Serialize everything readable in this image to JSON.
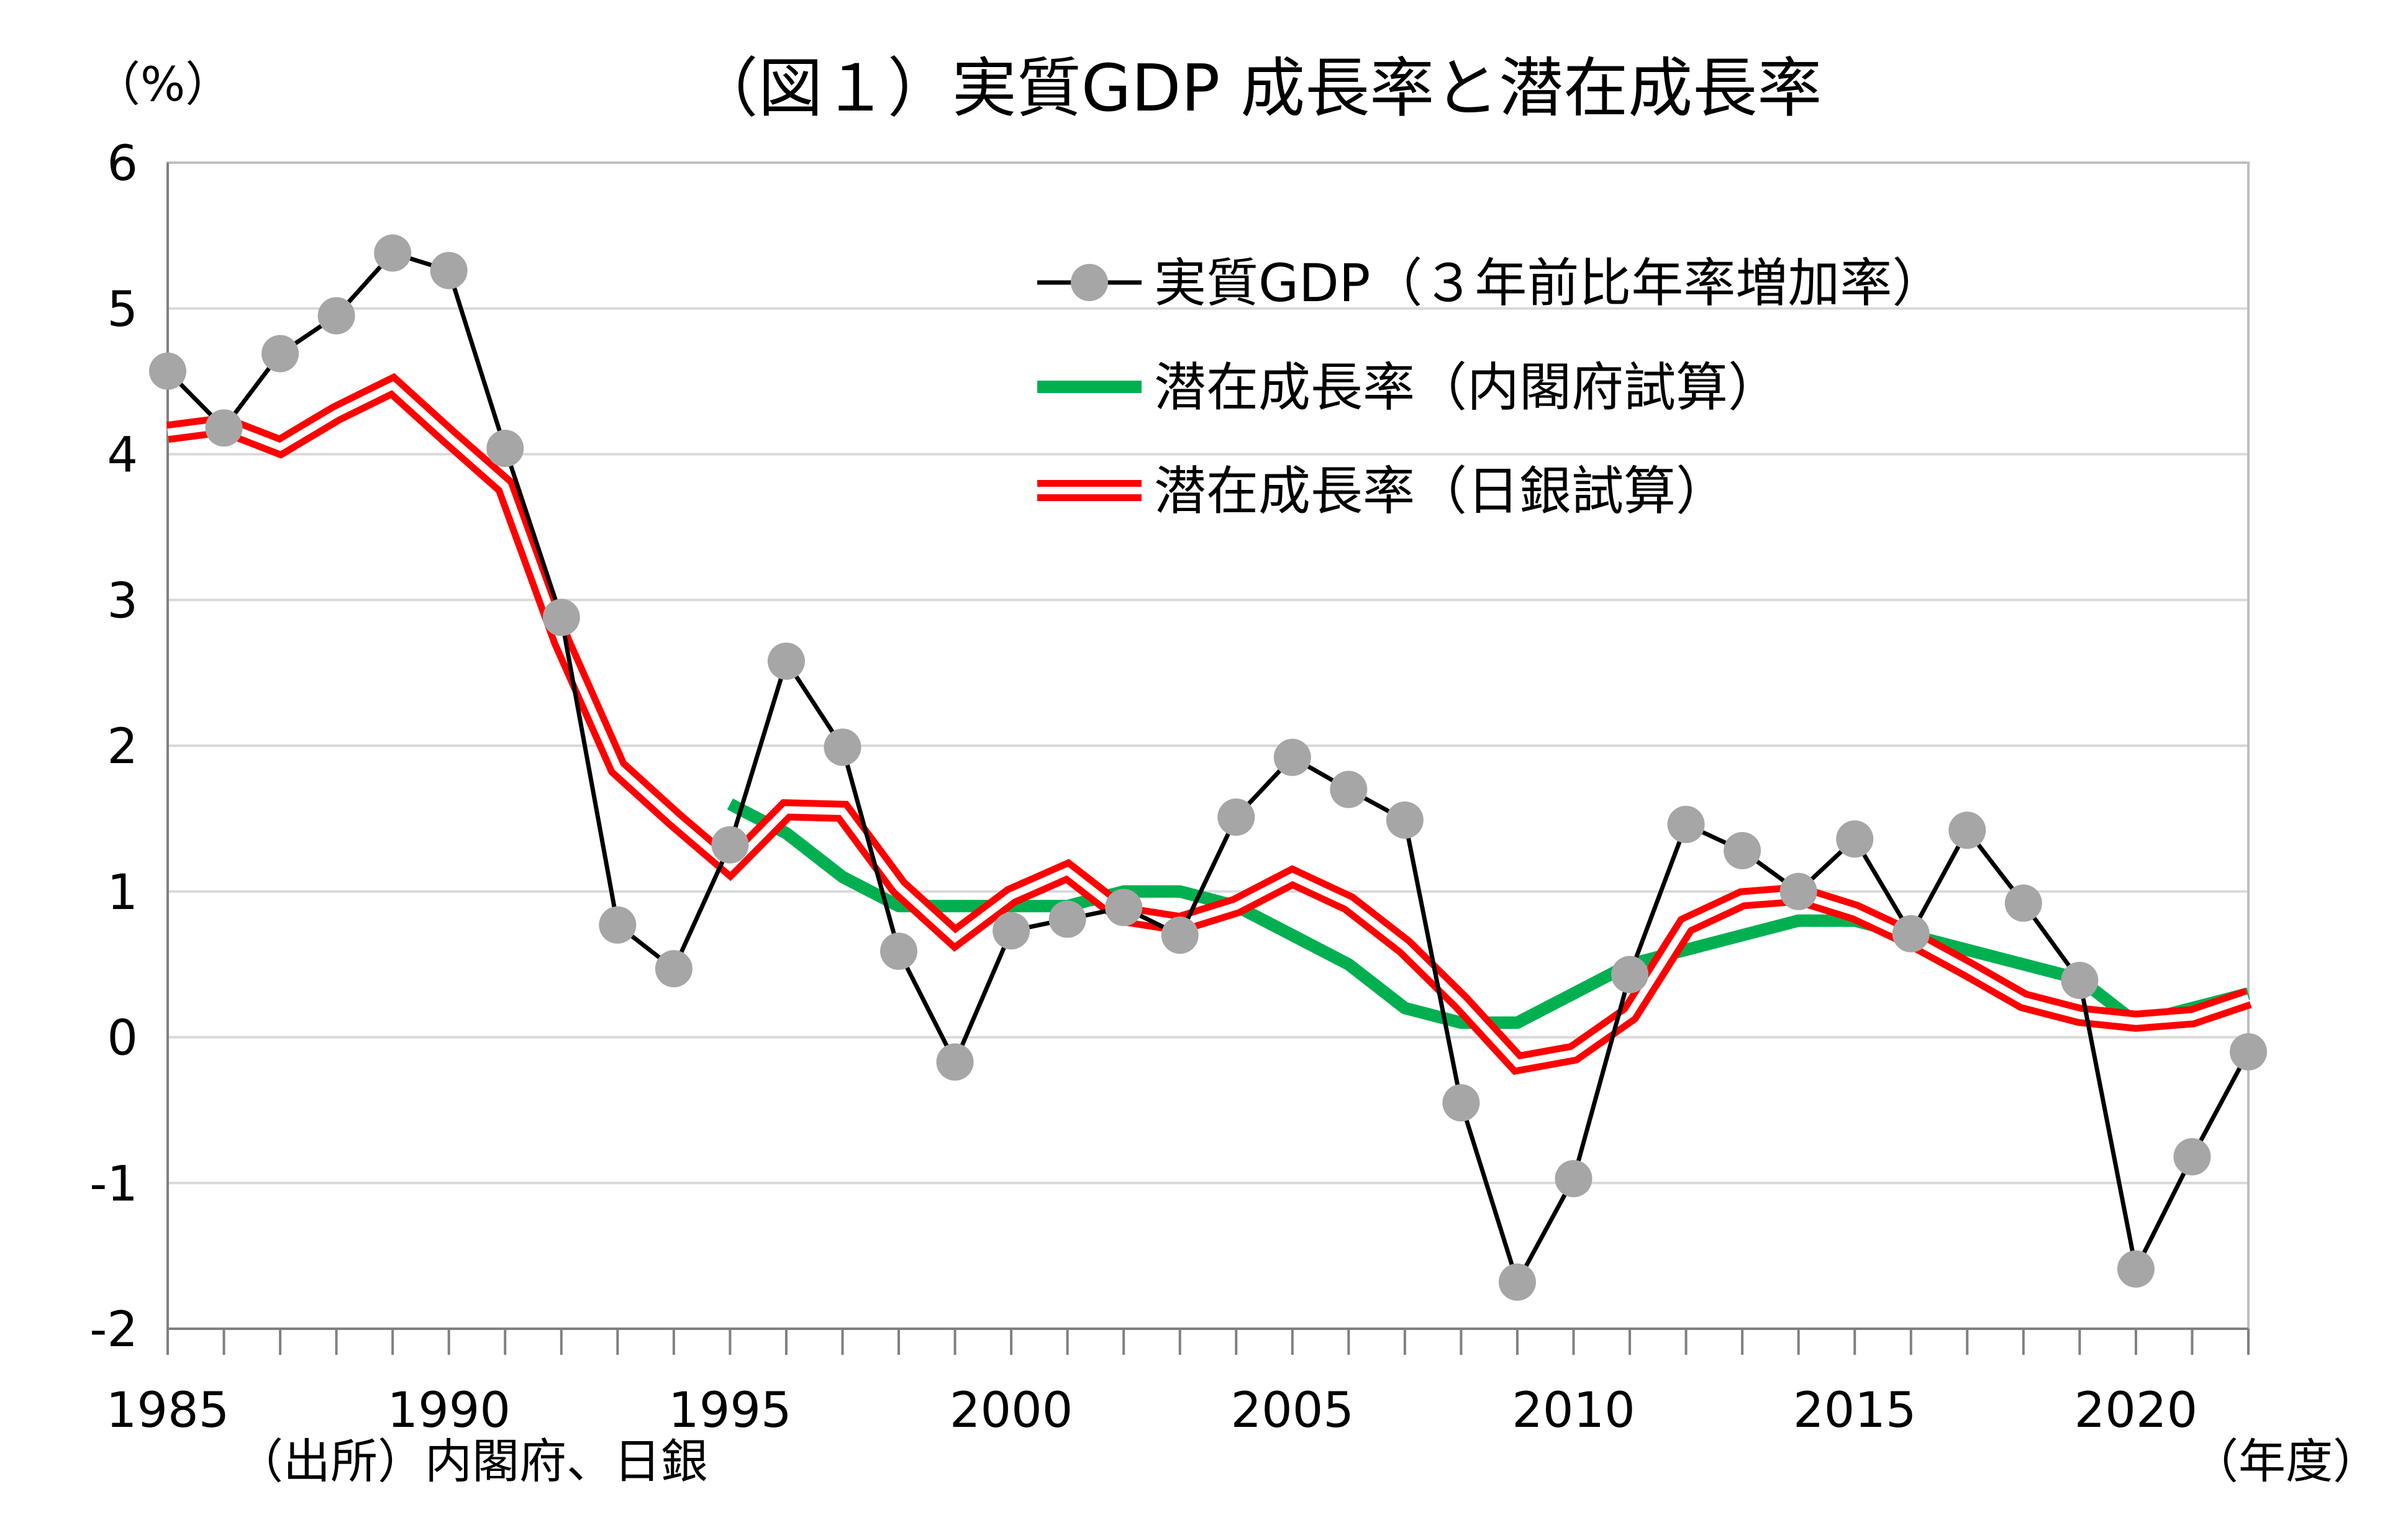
{
  "chart_data": {
    "type": "line",
    "title": "（図１）実質GDP 成長率と潜在成長率",
    "ylabel": "（%）",
    "xlabel": "（年度）",
    "source": "（出所）内閣府、日銀",
    "ylim": [
      -2,
      6
    ],
    "yticks": [
      "6",
      "5",
      "4",
      "3",
      "2",
      "1",
      "0",
      "-1",
      "-2"
    ],
    "xlim": [
      1985,
      2022
    ],
    "xticks": [
      "1985",
      "1990",
      "1995",
      "2000",
      "2005",
      "2010",
      "2015",
      "2020"
    ],
    "grid": true,
    "legend_position": "top-right",
    "series": [
      {
        "name": "実質GDP（３年前比年率増加率）",
        "style": "black-line-gray-markers",
        "line_color": "#000000",
        "marker_color": "#a6a6a6",
        "x": [
          1985,
          1986,
          1987,
          1988,
          1989,
          1990,
          1991,
          1992,
          1993,
          1994,
          1995,
          1996,
          1997,
          1998,
          1999,
          2000,
          2001,
          2002,
          2003,
          2004,
          2005,
          2006,
          2007,
          2008,
          2009,
          2010,
          2011,
          2012,
          2013,
          2014,
          2015,
          2016,
          2017,
          2018,
          2019,
          2020,
          2021,
          2022
        ],
        "values": [
          4.57,
          4.18,
          4.69,
          4.95,
          5.38,
          5.26,
          4.04,
          2.88,
          0.77,
          0.47,
          1.32,
          2.58,
          1.99,
          0.59,
          -0.17,
          0.73,
          0.81,
          0.89,
          0.7,
          1.51,
          1.92,
          1.7,
          1.49,
          -0.45,
          -1.68,
          -0.97,
          0.43,
          1.46,
          1.28,
          1.0,
          1.36,
          0.71,
          1.42,
          0.92,
          0.39,
          -1.59,
          -0.82,
          -0.1
        ]
      },
      {
        "name": "潜在成長率（内閣府試算）",
        "style": "green-thick",
        "line_color": "#00b050",
        "x": [
          1995,
          1996,
          1997,
          1998,
          1999,
          2000,
          2001,
          2002,
          2003,
          2004,
          2005,
          2006,
          2007,
          2008,
          2009,
          2010,
          2011,
          2012,
          2013,
          2014,
          2015,
          2016,
          2017,
          2018,
          2019,
          2020,
          2021,
          2022
        ],
        "values": [
          1.6,
          1.4,
          1.1,
          0.9,
          0.9,
          0.9,
          0.9,
          1.0,
          1.0,
          0.9,
          0.7,
          0.5,
          0.2,
          0.1,
          0.1,
          0.3,
          0.5,
          0.6,
          0.7,
          0.8,
          0.8,
          0.7,
          0.6,
          0.5,
          0.4,
          0.1,
          0.2,
          0.3
        ]
      },
      {
        "name": "潜在成長率（日銀試算）",
        "style": "red-double",
        "line_color": "#ff0000",
        "x": [
          1985,
          1986,
          1987,
          1988,
          1989,
          1990,
          1991,
          1992,
          1993,
          1994,
          1995,
          1996,
          1997,
          1998,
          1999,
          2000,
          2001,
          2002,
          2003,
          2004,
          2005,
          2006,
          2007,
          2008,
          2009,
          2010,
          2011,
          2012,
          2013,
          2014,
          2015,
          2016,
          2017,
          2018,
          2019,
          2020,
          2021,
          2022
        ],
        "values": [
          4.15,
          4.2,
          4.05,
          4.28,
          4.47,
          4.12,
          3.78,
          2.72,
          1.85,
          1.5,
          1.17,
          1.56,
          1.55,
          1.03,
          0.68,
          0.97,
          1.14,
          0.84,
          0.78,
          0.9,
          1.1,
          0.92,
          0.62,
          0.24,
          -0.18,
          -0.11,
          0.16,
          0.77,
          0.95,
          0.98,
          0.86,
          0.68,
          0.47,
          0.25,
          0.15,
          0.11,
          0.14,
          0.27
        ]
      }
    ]
  }
}
